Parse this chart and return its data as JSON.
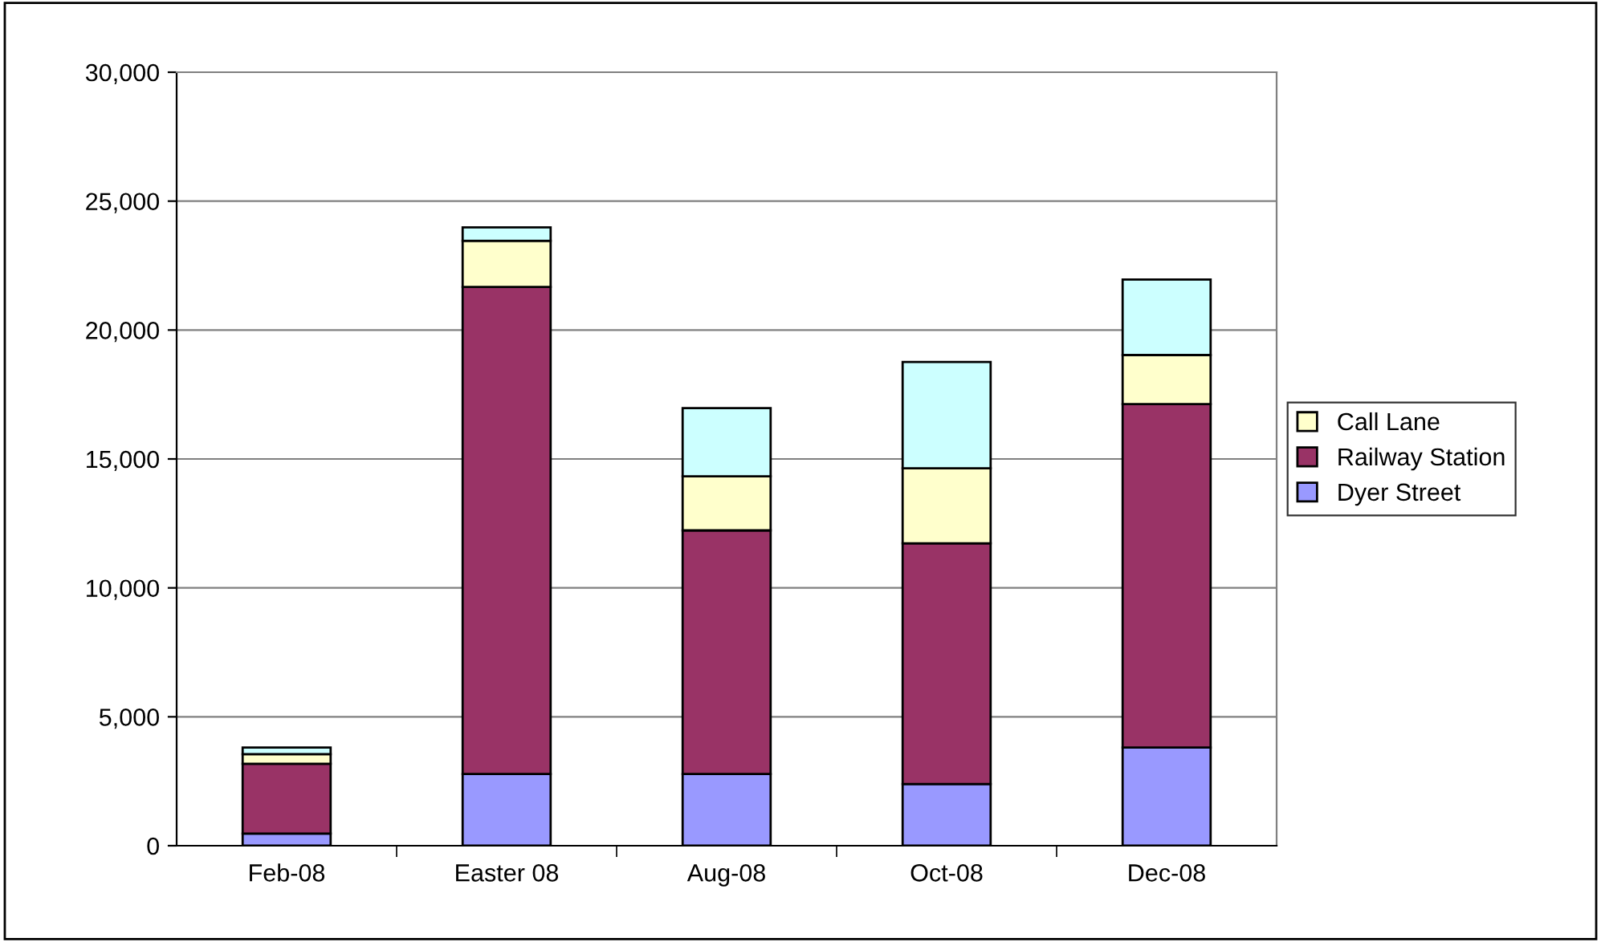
{
  "chart_data": {
    "type": "bar",
    "stacked": true,
    "categories": [
      "Feb-08",
      "Easter 08",
      "Aug-08",
      "Oct-08",
      "Dec-08"
    ],
    "series": [
      {
        "name": "Dyer Street",
        "color": "#9999ff",
        "values": [
          470,
          2780,
          2780,
          2390,
          3810
        ]
      },
      {
        "name": "Railway Station",
        "color": "#993366",
        "values": [
          2710,
          18890,
          9450,
          9340,
          13320
        ]
      },
      {
        "name": "Call Lane",
        "color": "#ffffcc",
        "values": [
          370,
          1790,
          2100,
          2910,
          1900
        ]
      },
      {
        "color": "#ccffff",
        "values": [
          260,
          520,
          2640,
          4120,
          2930
        ]
      }
    ],
    "ylim": [
      0,
      30000
    ],
    "yticks": [
      {
        "value": 0,
        "label": "0"
      },
      {
        "value": 5000,
        "label": "5,000"
      },
      {
        "value": 10000,
        "label": "10,000"
      },
      {
        "value": 15000,
        "label": "15,000"
      },
      {
        "value": 20000,
        "label": "20,000"
      },
      {
        "value": 25000,
        "label": "25,000"
      },
      {
        "value": 30000,
        "label": "30,000"
      }
    ],
    "grid": "y",
    "legend": "right"
  }
}
